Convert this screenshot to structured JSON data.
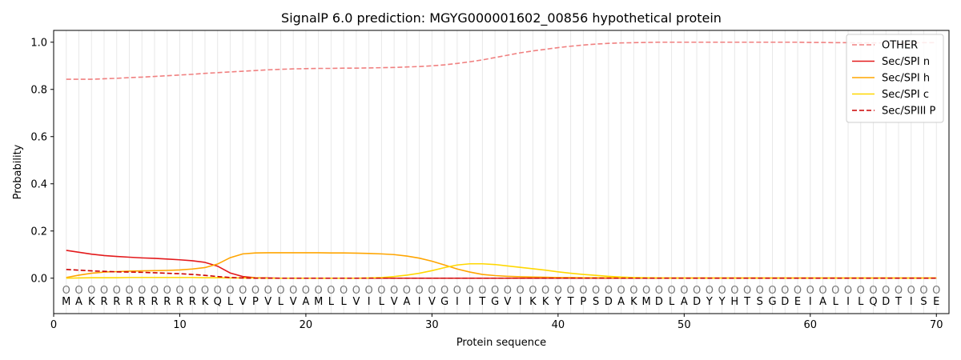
{
  "chart_data": {
    "type": "line",
    "title": "SignalP 6.0 prediction: MGYG000001602_00856 hypothetical protein",
    "xlabel": "Protein sequence",
    "ylabel": "Probability",
    "xlim": [
      0,
      71
    ],
    "ylim": [
      -0.15,
      1.05
    ],
    "x_ticks": [
      0,
      10,
      20,
      30,
      40,
      50,
      60,
      70
    ],
    "y_ticks": [
      0.0,
      0.2,
      0.4,
      0.6,
      0.8,
      1.0
    ],
    "x_tick_labels": [
      "0",
      "10",
      "20",
      "30",
      "40",
      "50",
      "60",
      "70"
    ],
    "y_tick_labels": [
      "0.0",
      "0.2",
      "0.4",
      "0.6",
      "0.8",
      "1.0"
    ],
    "grid": "vertical lines at each residue",
    "legend_position": "top-right",
    "residues": [
      "M",
      "A",
      "K",
      "R",
      "R",
      "R",
      "R",
      "R",
      "R",
      "R",
      "R",
      "K",
      "Q",
      "L",
      "V",
      "P",
      "V",
      "L",
      "V",
      "A",
      "M",
      "L",
      "L",
      "V",
      "I",
      "L",
      "V",
      "A",
      "I",
      "V",
      "G",
      "I",
      "I",
      "T",
      "G",
      "V",
      "I",
      "K",
      "K",
      "Y",
      "T",
      "P",
      "S",
      "D",
      "A",
      "K",
      "M",
      "D",
      "L",
      "A",
      "D",
      "Y",
      "Y",
      "H",
      "T",
      "S",
      "G",
      "D",
      "E",
      "I",
      "A",
      "L",
      "I",
      "L",
      "Q",
      "D",
      "T",
      "I",
      "S",
      "E"
    ],
    "residue_predictions": [
      "O",
      "O",
      "O",
      "O",
      "O",
      "O",
      "O",
      "O",
      "O",
      "O",
      "O",
      "O",
      "O",
      "O",
      "O",
      "O",
      "O",
      "O",
      "O",
      "O",
      "O",
      "O",
      "O",
      "O",
      "O",
      "O",
      "O",
      "O",
      "O",
      "O",
      "O",
      "O",
      "O",
      "O",
      "O",
      "O",
      "O",
      "O",
      "O",
      "O",
      "O",
      "O",
      "O",
      "O",
      "O",
      "O",
      "O",
      "O",
      "O",
      "O",
      "O",
      "O",
      "O",
      "O",
      "O",
      "O",
      "O",
      "O",
      "O",
      "O",
      "O",
      "O",
      "O",
      "O",
      "O",
      "O",
      "O",
      "O",
      "O",
      "O"
    ],
    "x": [
      1,
      2,
      3,
      4,
      5,
      6,
      7,
      8,
      9,
      10,
      11,
      12,
      13,
      14,
      15,
      16,
      17,
      18,
      19,
      20,
      21,
      22,
      23,
      24,
      25,
      26,
      27,
      28,
      29,
      30,
      31,
      32,
      33,
      34,
      35,
      36,
      37,
      38,
      39,
      40,
      41,
      42,
      43,
      44,
      45,
      46,
      47,
      48,
      49,
      50,
      51,
      52,
      53,
      54,
      55,
      56,
      57,
      58,
      59,
      60,
      61,
      62,
      63,
      64,
      65,
      66,
      67,
      68,
      69,
      70
    ],
    "series": [
      {
        "name": "OTHER",
        "color": "#f08080",
        "style": "dashed",
        "values": [
          0.843,
          0.843,
          0.843,
          0.845,
          0.847,
          0.85,
          0.852,
          0.855,
          0.858,
          0.861,
          0.864,
          0.868,
          0.871,
          0.874,
          0.877,
          0.88,
          0.883,
          0.885,
          0.887,
          0.888,
          0.889,
          0.889,
          0.89,
          0.89,
          0.891,
          0.892,
          0.893,
          0.895,
          0.897,
          0.9,
          0.904,
          0.91,
          0.917,
          0.925,
          0.935,
          0.945,
          0.955,
          0.963,
          0.97,
          0.977,
          0.983,
          0.988,
          0.992,
          0.995,
          0.997,
          0.998,
          0.999,
          1.0,
          1.0,
          1.0,
          1.0,
          1.0,
          1.0,
          1.0,
          1.0,
          1.0,
          1.0,
          1.0,
          1.0,
          0.999,
          0.999,
          0.998,
          0.998,
          0.997,
          0.997,
          0.997,
          0.997,
          0.997,
          0.998,
          0.998
        ]
      },
      {
        "name": "Sec/SPI n",
        "color": "#e31a1c",
        "style": "solid",
        "values": [
          0.118,
          0.11,
          0.102,
          0.096,
          0.092,
          0.089,
          0.086,
          0.084,
          0.081,
          0.078,
          0.074,
          0.067,
          0.051,
          0.022,
          0.007,
          0.002,
          0.001,
          0,
          0,
          0,
          0,
          0,
          0,
          0,
          0,
          0,
          0,
          0,
          0,
          0,
          0,
          0,
          0,
          0,
          0,
          0,
          0,
          0,
          0,
          0,
          0,
          0,
          0,
          0,
          0,
          0,
          0,
          0,
          0,
          0,
          0,
          0,
          0,
          0,
          0,
          0,
          0,
          0,
          0,
          0,
          0,
          0,
          0,
          0,
          0,
          0,
          0,
          0,
          0,
          0
        ]
      },
      {
        "name": "Sec/SPI h",
        "color": "#ffa500",
        "style": "solid",
        "values": [
          0.003,
          0.013,
          0.021,
          0.026,
          0.028,
          0.03,
          0.031,
          0.032,
          0.033,
          0.035,
          0.039,
          0.045,
          0.06,
          0.087,
          0.103,
          0.107,
          0.108,
          0.108,
          0.108,
          0.108,
          0.108,
          0.107,
          0.107,
          0.106,
          0.105,
          0.103,
          0.1,
          0.094,
          0.085,
          0.072,
          0.056,
          0.039,
          0.026,
          0.016,
          0.011,
          0.008,
          0.006,
          0.005,
          0.004,
          0.003,
          0.003,
          0.002,
          0.002,
          0.002,
          0.001,
          0.001,
          0.001,
          0.001,
          0.001,
          0.001,
          0.001,
          0.001,
          0.001,
          0.001,
          0.001,
          0.001,
          0.001,
          0.001,
          0.001,
          0.001,
          0.001,
          0.001,
          0.001,
          0.001,
          0.001,
          0.001,
          0.001,
          0.001,
          0.001,
          0.001
        ]
      },
      {
        "name": "Sec/SPI c",
        "color": "#ffd700",
        "style": "solid",
        "values": [
          0,
          0.001,
          0.002,
          0.002,
          0.002,
          0.003,
          0.003,
          0.003,
          0.003,
          0.003,
          0.003,
          0.002,
          0.002,
          0.001,
          0.001,
          0.001,
          0,
          0,
          0,
          0,
          0,
          0,
          0,
          0,
          0.001,
          0.003,
          0.007,
          0.013,
          0.021,
          0.032,
          0.045,
          0.056,
          0.061,
          0.061,
          0.058,
          0.052,
          0.046,
          0.04,
          0.034,
          0.027,
          0.021,
          0.016,
          0.012,
          0.008,
          0.005,
          0.003,
          0.002,
          0.001,
          0,
          0,
          0,
          0,
          0,
          0,
          0,
          0,
          0,
          0,
          0,
          0,
          0,
          0,
          0,
          0,
          0,
          0,
          0,
          0,
          0,
          0
        ]
      },
      {
        "name": "Sec/SPIII P",
        "color": "#cc0000",
        "style": "dashed",
        "values": [
          0.037,
          0.034,
          0.031,
          0.029,
          0.027,
          0.026,
          0.025,
          0.023,
          0.021,
          0.019,
          0.016,
          0.012,
          0.007,
          0.003,
          0.001,
          0,
          0,
          0,
          0,
          0,
          0,
          0,
          0,
          0,
          0,
          0,
          0,
          0,
          0,
          0,
          0,
          0,
          0,
          0,
          0,
          0,
          0,
          0,
          0,
          0,
          0,
          0,
          0,
          0,
          0,
          0,
          0,
          0,
          0,
          0,
          0,
          0,
          0,
          0,
          0,
          0,
          0,
          0,
          0,
          0,
          0,
          0,
          0,
          0,
          0,
          0,
          0,
          0,
          0,
          0
        ]
      }
    ]
  }
}
